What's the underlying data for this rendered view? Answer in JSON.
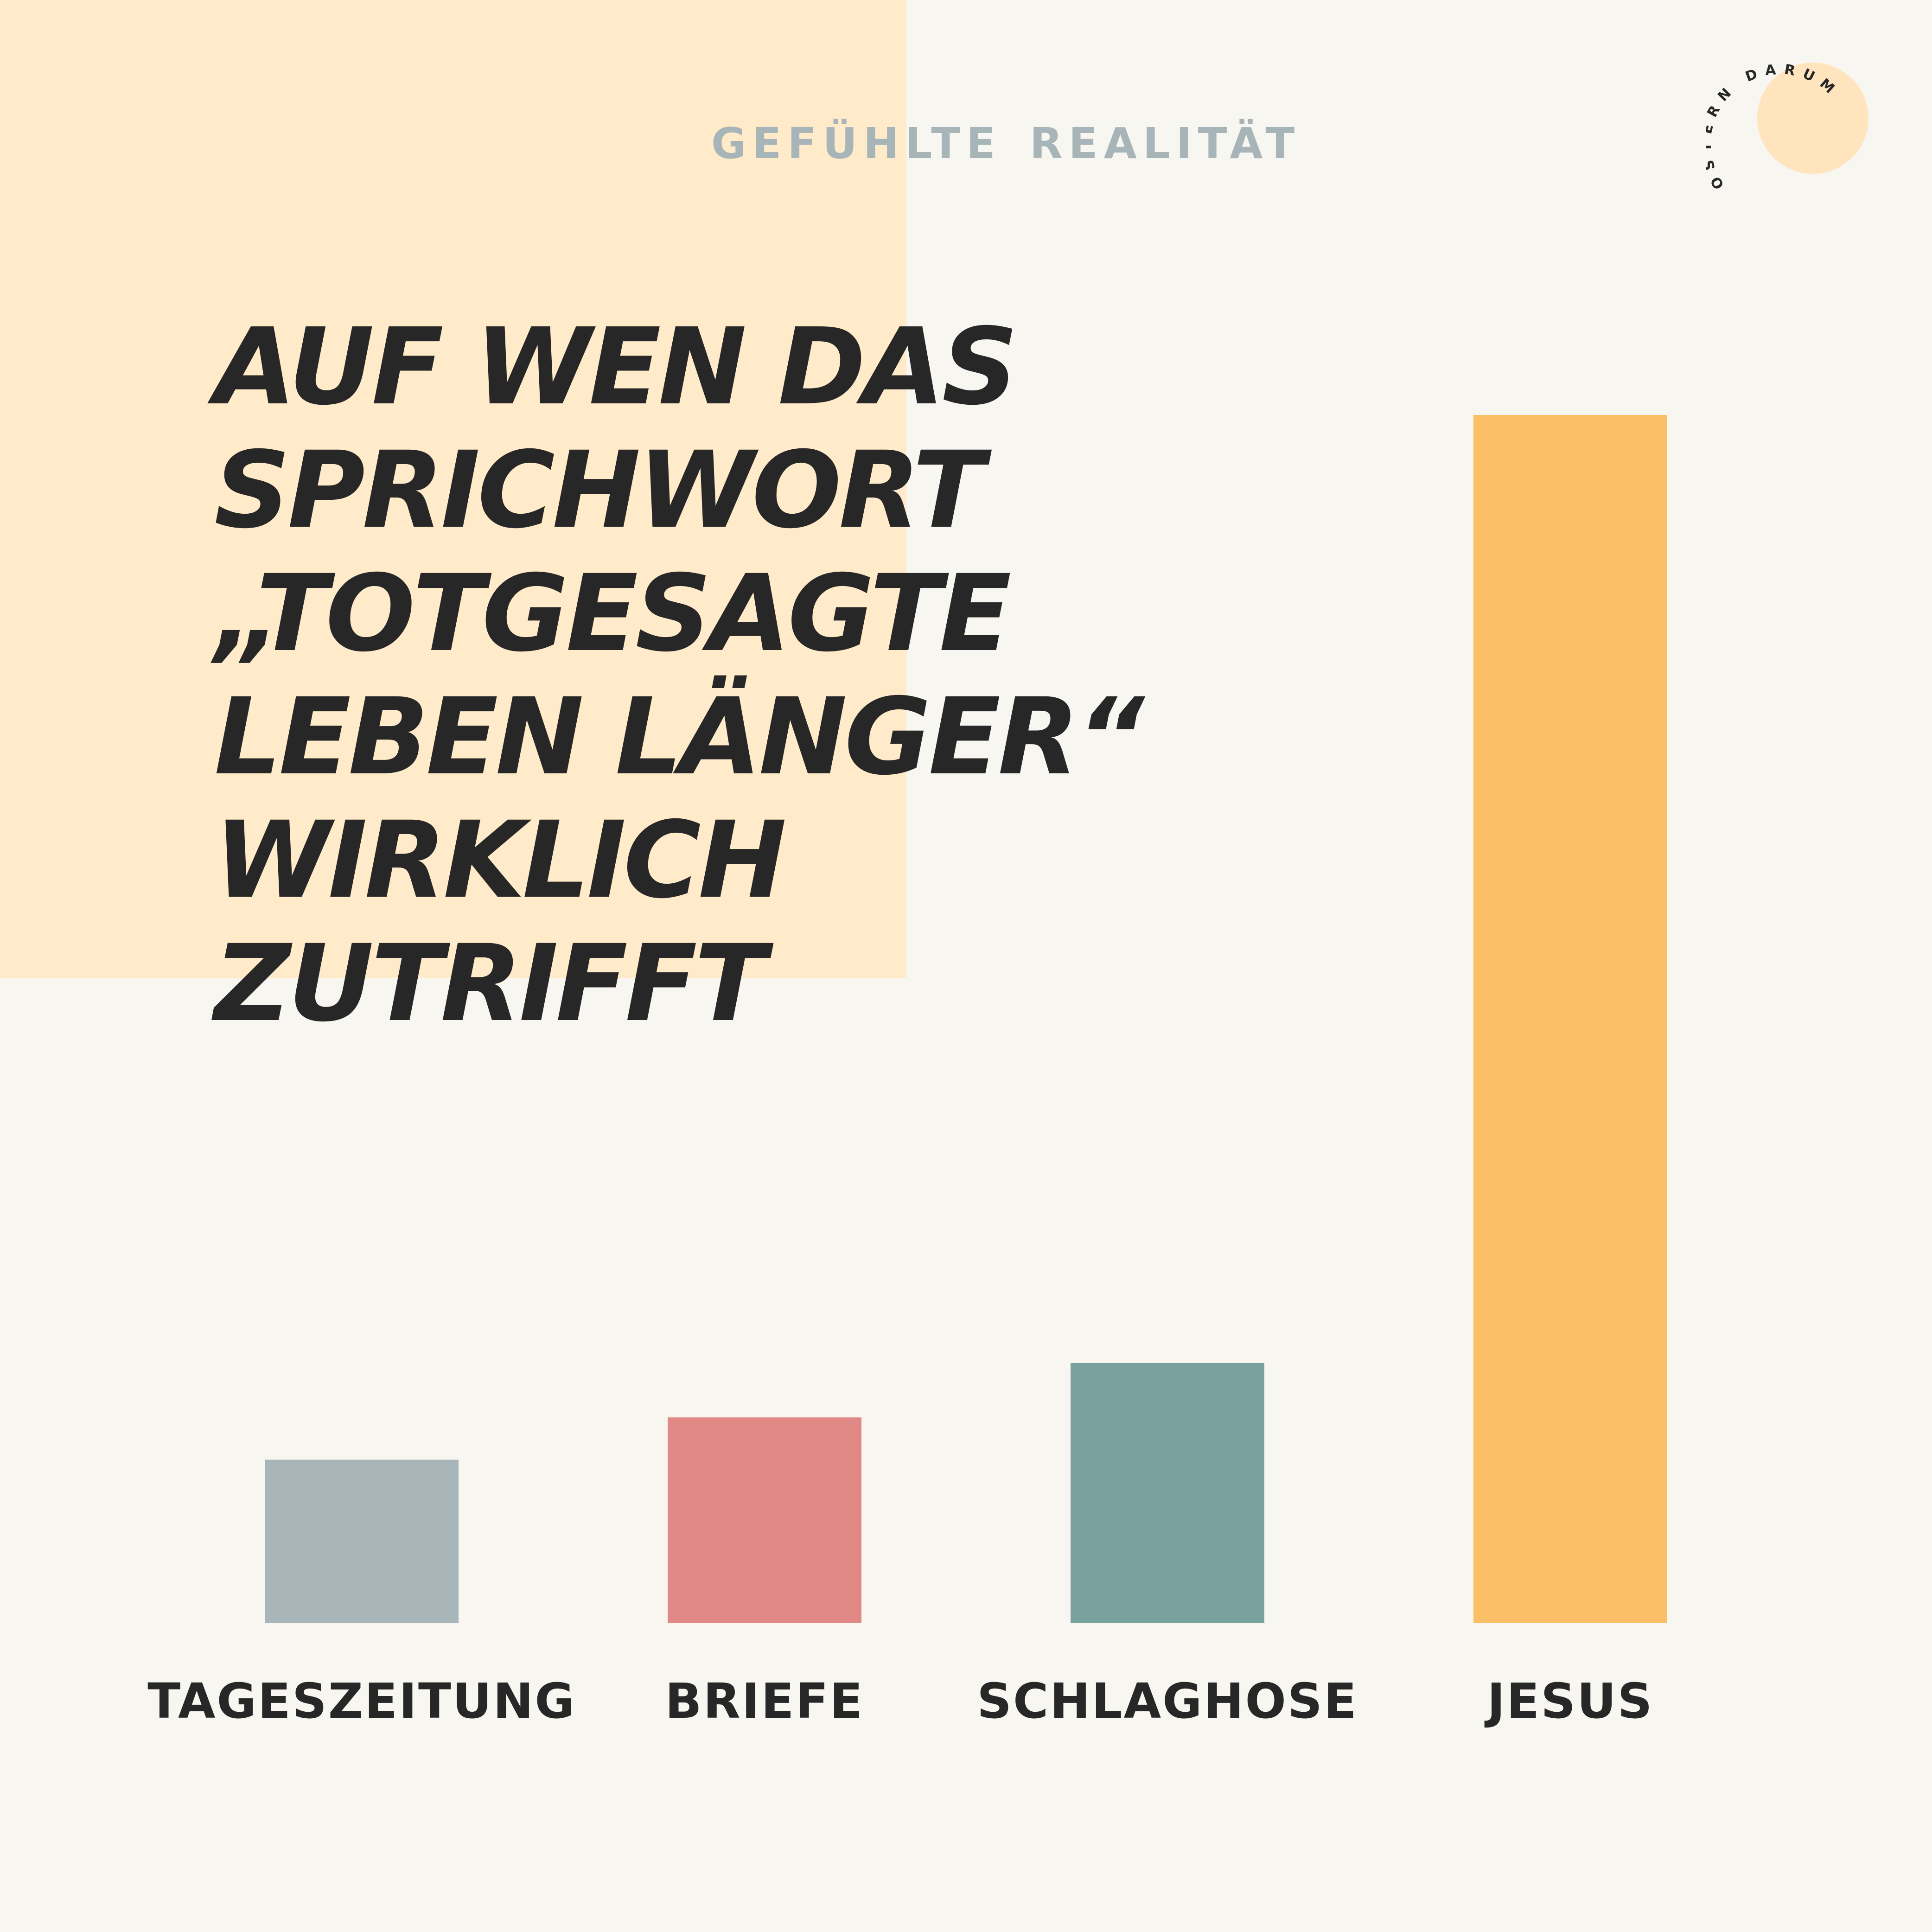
{
  "colors": {
    "page_background": "#f8f6f1",
    "accent_block": "#ffebc9",
    "subtitle_text": "#a7b5b8",
    "headline_text": "#272727",
    "logo_circle": "#ffe4bd",
    "logo_text": "#272727"
  },
  "subtitle": "GEFÜHLTE REALITÄT",
  "headline": {
    "lines": [
      "AUF WEN DAS",
      "SPRICHWORT",
      "„TOTGESAGTE",
      "LEBEN LÄNGER“",
      "WIRKLICH",
      "ZUTRIFFT"
    ]
  },
  "logo": {
    "text": "OSTERN DARUM",
    "icon": "circle-text-badge-icon"
  },
  "chart_data": {
    "type": "bar",
    "title": "",
    "xlabel": "",
    "ylabel": "",
    "grid": false,
    "ylim": [
      0,
      100
    ],
    "categories": [
      "TAGESZEITUNG",
      "BRIEFE",
      "SCHLAGHOSE",
      "JESUS"
    ],
    "values": [
      13.5,
      17,
      21.5,
      100
    ],
    "colors": [
      "#a8b6ba",
      "#e08987",
      "#79a19e",
      "#fbc067"
    ]
  }
}
